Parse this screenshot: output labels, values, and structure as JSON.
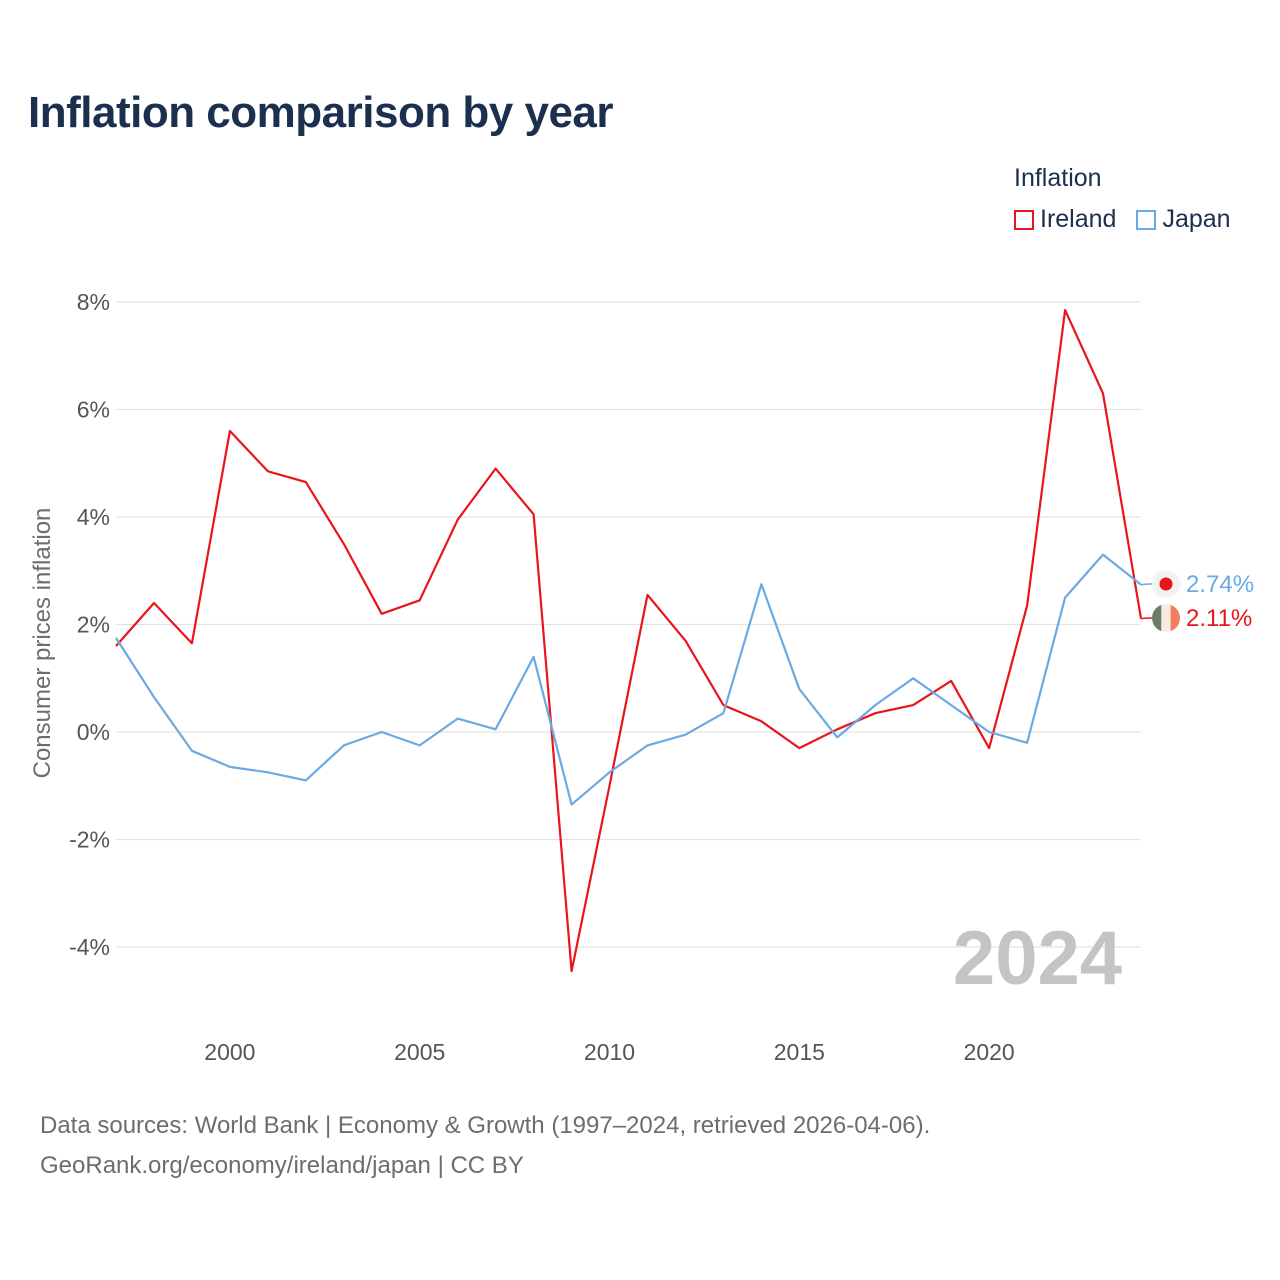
{
  "title": "Inflation comparison by year",
  "legend": {
    "title": "Inflation",
    "items": [
      {
        "label": "Ireland",
        "color": "#e8151b"
      },
      {
        "label": "Japan",
        "color": "#6aaae4"
      }
    ]
  },
  "watermark_year": "2024",
  "end_labels": {
    "japan": "2.74%",
    "ireland": "2.11%"
  },
  "footer": {
    "line1": "Data sources: World Bank | Economy & Growth (1997–2024, retrieved 2026-04-06).",
    "line2": "GeoRank.org/economy/ireland/japan | CC BY"
  },
  "chart_data": {
    "type": "line",
    "title": "Inflation comparison by year",
    "xlabel": "",
    "ylabel": "Consumer prices inflation",
    "xlim": [
      1997,
      2024
    ],
    "ylim": [
      -4.8,
      8.2
    ],
    "yticks": [
      -4,
      -2,
      0,
      2,
      4,
      6,
      8
    ],
    "ytick_labels": [
      "-4%",
      "-2%",
      "0%",
      "2%",
      "4%",
      "6%",
      "8%"
    ],
    "xticks": [
      2000,
      2005,
      2010,
      2015,
      2020
    ],
    "xtick_labels": [
      "2000",
      "2005",
      "2010",
      "2015",
      "2020"
    ],
    "grid": true,
    "legend_position": "top-right",
    "x": [
      1997,
      1998,
      1999,
      2000,
      2001,
      2002,
      2003,
      2004,
      2005,
      2006,
      2007,
      2008,
      2009,
      2010,
      2011,
      2012,
      2013,
      2014,
      2015,
      2016,
      2017,
      2018,
      2019,
      2020,
      2021,
      2022,
      2023,
      2024
    ],
    "series": [
      {
        "name": "Ireland",
        "color": "#e8151b",
        "values": [
          1.6,
          2.4,
          1.65,
          5.6,
          4.85,
          4.65,
          3.5,
          2.2,
          2.45,
          3.95,
          4.9,
          4.05,
          -4.45,
          -1.0,
          2.55,
          1.7,
          0.5,
          0.2,
          -0.3,
          0.05,
          0.35,
          0.5,
          0.95,
          -0.3,
          2.35,
          7.85,
          6.3,
          2.11
        ]
      },
      {
        "name": "Japan",
        "color": "#6aaae4",
        "values": [
          1.75,
          0.65,
          -0.35,
          -0.65,
          -0.75,
          -0.9,
          -0.25,
          0.0,
          -0.25,
          0.25,
          0.05,
          1.4,
          -1.35,
          -0.75,
          -0.25,
          -0.05,
          0.35,
          2.75,
          0.8,
          -0.1,
          0.5,
          1.0,
          0.5,
          0.0,
          -0.2,
          2.5,
          3.3,
          2.74
        ]
      }
    ]
  }
}
